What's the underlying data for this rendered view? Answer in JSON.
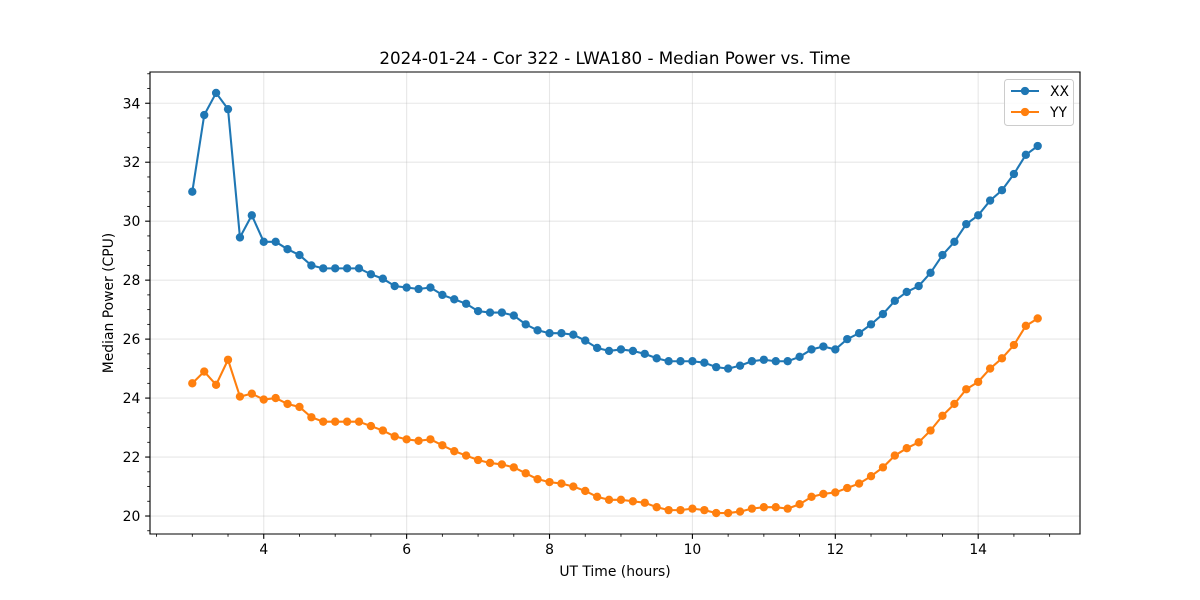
{
  "chart_data": {
    "type": "line",
    "title": "2024-01-24 - Cor 322 - LWA180 - Median Power vs. Time",
    "xlabel": "UT Time (hours)",
    "ylabel": "Median Power (CPU)",
    "xlim": [
      2.408,
      15.425
    ],
    "ylim": [
      19.39,
      35.06
    ],
    "xticks": [
      4,
      6,
      8,
      10,
      12,
      14
    ],
    "yticks": [
      20,
      22,
      24,
      26,
      28,
      30,
      32,
      34
    ],
    "grid": true,
    "legend": "top-right",
    "x": [
      3.0,
      3.167,
      3.333,
      3.5,
      3.667,
      3.833,
      4.0,
      4.167,
      4.333,
      4.5,
      4.667,
      4.833,
      5.0,
      5.167,
      5.333,
      5.5,
      5.667,
      5.833,
      6.0,
      6.167,
      6.333,
      6.5,
      6.667,
      6.833,
      7.0,
      7.167,
      7.333,
      7.5,
      7.667,
      7.833,
      8.0,
      8.167,
      8.333,
      8.5,
      8.667,
      8.833,
      9.0,
      9.167,
      9.333,
      9.5,
      9.667,
      9.833,
      10.0,
      10.167,
      10.333,
      10.5,
      10.667,
      10.833,
      11.0,
      11.167,
      11.333,
      11.5,
      11.667,
      11.833,
      12.0,
      12.167,
      12.333,
      12.5,
      12.667,
      12.833,
      13.0,
      13.167,
      13.333,
      13.5,
      13.667,
      13.833,
      14.0,
      14.167,
      14.333,
      14.5,
      14.667,
      14.833
    ],
    "series": [
      {
        "name": "XX",
        "color": "#1f77b4",
        "values": [
          31.0,
          33.6,
          34.35,
          33.8,
          29.45,
          30.2,
          29.3,
          29.3,
          29.05,
          28.85,
          28.5,
          28.4,
          28.4,
          28.4,
          28.4,
          28.2,
          28.05,
          27.8,
          27.75,
          27.7,
          27.75,
          27.5,
          27.35,
          27.2,
          26.95,
          26.9,
          26.9,
          26.8,
          26.5,
          26.3,
          26.2,
          26.2,
          26.15,
          25.95,
          25.7,
          25.6,
          25.65,
          25.6,
          25.5,
          25.35,
          25.25,
          25.25,
          25.25,
          25.2,
          25.05,
          25.0,
          25.1,
          25.25,
          25.3,
          25.25,
          25.25,
          25.4,
          25.65,
          25.75,
          25.65,
          26.0,
          26.2,
          26.5,
          26.85,
          27.3,
          27.6,
          27.8,
          28.25,
          28.85,
          29.3,
          29.9,
          30.2,
          30.7,
          31.05,
          31.6,
          32.25,
          32.55
        ]
      },
      {
        "name": "YY",
        "color": "#ff7f0e",
        "values": [
          24.5,
          24.9,
          24.45,
          25.3,
          24.05,
          24.15,
          23.95,
          24.0,
          23.8,
          23.7,
          23.35,
          23.2,
          23.2,
          23.2,
          23.2,
          23.05,
          22.9,
          22.7,
          22.6,
          22.55,
          22.6,
          22.4,
          22.2,
          22.05,
          21.9,
          21.8,
          21.75,
          21.65,
          21.45,
          21.25,
          21.15,
          21.1,
          21.0,
          20.85,
          20.65,
          20.55,
          20.55,
          20.5,
          20.45,
          20.3,
          20.2,
          20.2,
          20.25,
          20.2,
          20.1,
          20.1,
          20.15,
          20.25,
          20.3,
          20.3,
          20.25,
          20.4,
          20.65,
          20.75,
          20.8,
          20.95,
          21.1,
          21.35,
          21.65,
          22.05,
          22.3,
          22.5,
          22.9,
          23.4,
          23.8,
          24.3,
          24.55,
          25.0,
          25.35,
          25.8,
          26.45,
          26.7
        ]
      }
    ]
  }
}
